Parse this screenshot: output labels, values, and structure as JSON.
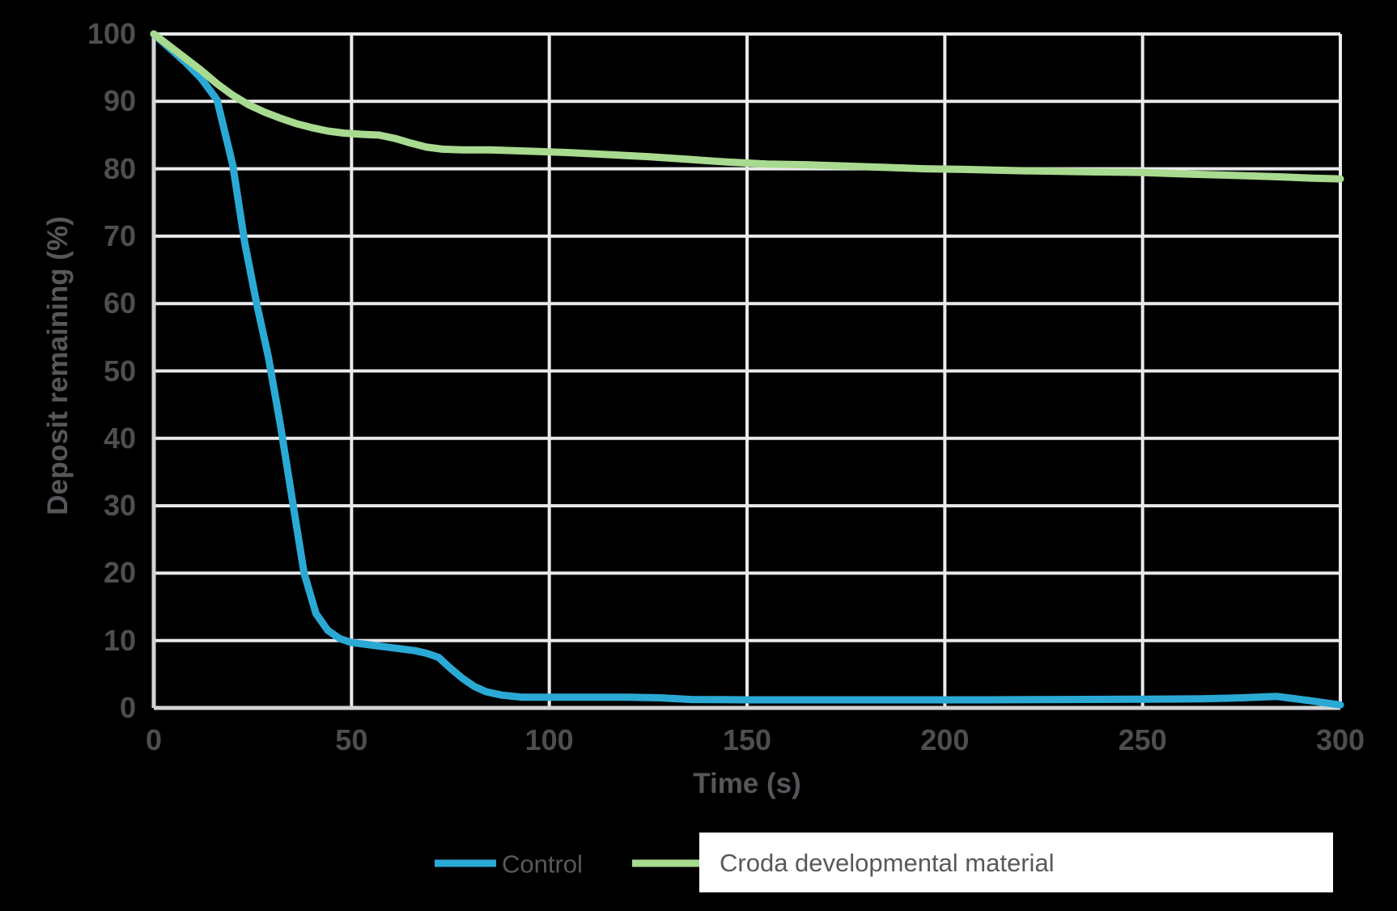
{
  "chart_data": {
    "type": "line",
    "title": "",
    "xlabel": "Time (s)",
    "ylabel": "Deposit remaining (%)",
    "xlim": [
      0,
      300
    ],
    "ylim": [
      0,
      100
    ],
    "x_ticks": [
      0,
      50,
      100,
      150,
      200,
      250,
      300
    ],
    "y_ticks": [
      0,
      10,
      20,
      30,
      40,
      50,
      60,
      70,
      80,
      90,
      100
    ],
    "grid": true,
    "legend_position": "bottom",
    "colors": {
      "background": "#000000",
      "grid": "#E9EAEB",
      "axis": "#D2D3D5",
      "tick_labels": "#4D4E50",
      "axis_titles": "#56575A",
      "legend_text": "#58595B",
      "legend_highlight_box": "#FFFFFF"
    },
    "series": [
      {
        "name": "Control",
        "color": "#2BA9D5",
        "x": [
          0,
          4,
          8,
          12,
          16,
          20,
          23,
          26,
          29,
          32,
          35,
          38,
          41,
          44,
          47,
          50,
          54,
          58,
          62,
          66,
          69,
          72,
          75,
          78,
          81,
          84,
          88,
          93,
          100,
          110,
          120,
          128,
          136,
          150,
          170,
          190,
          210,
          230,
          250,
          265,
          275,
          284,
          292,
          300
        ],
        "y": [
          100,
          97.9,
          95.8,
          93.4,
          90.2,
          80.5,
          69,
          60,
          52,
          42,
          31,
          20,
          14,
          11.5,
          10.3,
          9.7,
          9.4,
          9.1,
          8.8,
          8.5,
          8.1,
          7.5,
          5.9,
          4.4,
          3.2,
          2.4,
          1.9,
          1.6,
          1.6,
          1.6,
          1.6,
          1.5,
          1.25,
          1.2,
          1.2,
          1.2,
          1.2,
          1.25,
          1.3,
          1.35,
          1.5,
          1.7,
          1.1,
          0.45
        ]
      },
      {
        "name": "Croda developmental material",
        "color": "#A8DA8F",
        "x": [
          0,
          4,
          8,
          12,
          16,
          20,
          24,
          28,
          32,
          36,
          40,
          44,
          48,
          53,
          57,
          61,
          65,
          69,
          73,
          78,
          85,
          95,
          105,
          115,
          125,
          135,
          145,
          155,
          165,
          175,
          185,
          195,
          205,
          220,
          235,
          250,
          262,
          274,
          285,
          293,
          300
        ],
        "y": [
          100,
          98.2,
          96.4,
          94.6,
          92.6,
          90.9,
          89.5,
          88.4,
          87.5,
          86.7,
          86.1,
          85.6,
          85.3,
          85.1,
          85.0,
          84.5,
          83.8,
          83.2,
          82.9,
          82.8,
          82.8,
          82.6,
          82.4,
          82.1,
          81.8,
          81.4,
          81.0,
          80.7,
          80.6,
          80.4,
          80.2,
          80.0,
          79.9,
          79.7,
          79.55,
          79.45,
          79.2,
          79.0,
          78.8,
          78.6,
          78.5
        ]
      }
    ]
  },
  "legend": {
    "control_label": "Control",
    "croda_label": "Croda developmental material"
  }
}
